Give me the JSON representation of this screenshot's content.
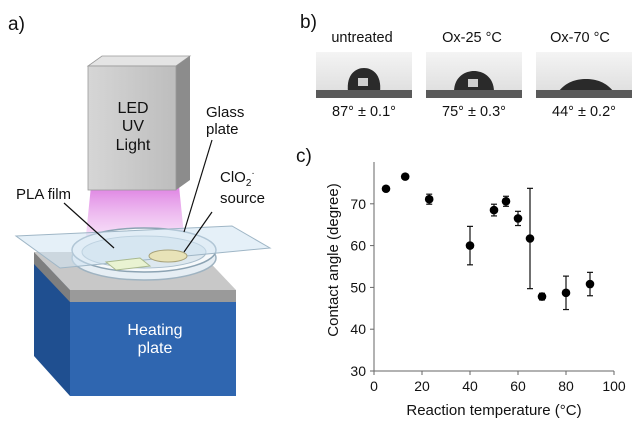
{
  "panels": {
    "a": "a)",
    "b": "b)",
    "c": "c)"
  },
  "schematic": {
    "led_lines": [
      "LED",
      "UV",
      "Light"
    ],
    "glass_lines": [
      "Glass",
      "plate"
    ],
    "clo2_main": "ClO",
    "clo2_sub": "2",
    "clo2_sup": "·",
    "clo2_source": "source",
    "pla_film": "PLA film",
    "heating_lines": [
      "Heating",
      "plate"
    ]
  },
  "droplets": [
    {
      "label": "untreated",
      "angle_text": "87° ± 0.1°"
    },
    {
      "label": "Ox-25 °C",
      "angle_text": "75° ± 0.3°"
    },
    {
      "label": "Ox-70 °C",
      "angle_text": "44° ± 0.2°"
    }
  ],
  "chart_data": {
    "type": "scatter",
    "xlabel": "Reaction temperature (°C)",
    "ylabel": "Contact angle (degree)",
    "xlim": [
      0,
      100
    ],
    "ylim": [
      30,
      80
    ],
    "xticks": [
      0,
      20,
      40,
      60,
      80,
      100
    ],
    "yticks": [
      30,
      40,
      50,
      60,
      70
    ],
    "points": [
      {
        "x": 5,
        "y": 73.6,
        "err": 0
      },
      {
        "x": 13,
        "y": 76.5,
        "err": 0
      },
      {
        "x": 23,
        "y": 71.1,
        "err": 1.2
      },
      {
        "x": 40,
        "y": 60,
        "err": 4.6
      },
      {
        "x": 50,
        "y": 68.5,
        "err": 1.4
      },
      {
        "x": 55,
        "y": 70.6,
        "err": 1.2
      },
      {
        "x": 60,
        "y": 66.5,
        "err": 1.7
      },
      {
        "x": 65,
        "y": 61.7,
        "err": 12
      },
      {
        "x": 70,
        "y": 47.8,
        "err": 0.8
      },
      {
        "x": 80,
        "y": 48.7,
        "err": 4
      },
      {
        "x": 90,
        "y": 50.8,
        "err": 2.8
      }
    ]
  }
}
